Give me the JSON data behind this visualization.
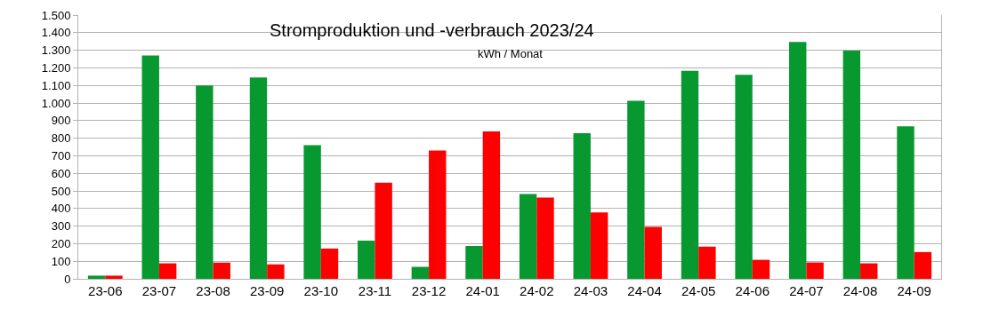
{
  "chart_data": {
    "type": "bar",
    "title": "Stromproduktion und -verbrauch 2023/24",
    "subtitle": "kWh / Monat",
    "categories": [
      "23-06",
      "23-07",
      "23-08",
      "23-09",
      "23-10",
      "23-11",
      "23-12",
      "24-01",
      "24-02",
      "24-03",
      "24-04",
      "24-05",
      "24-06",
      "24-07",
      "24-08",
      "24-09"
    ],
    "series": [
      {
        "color": "#07982f",
        "values": [
          18,
          1270,
          1100,
          1145,
          760,
          217,
          68,
          187,
          482,
          828,
          1012,
          1183,
          1160,
          1347,
          1298,
          868
        ]
      },
      {
        "color": "#ff0000",
        "values": [
          18,
          88,
          92,
          82,
          172,
          547,
          730,
          838,
          462,
          378,
          296,
          183,
          108,
          93,
          88,
          152
        ]
      }
    ],
    "ylim": [
      0,
      1500
    ],
    "yticks": [
      0,
      100,
      200,
      300,
      400,
      500,
      600,
      700,
      800,
      900,
      {
        "value": 1000,
        "label": "1.000"
      },
      {
        "value": 1100,
        "label": "1.100"
      },
      {
        "value": 1200,
        "label": "1.200"
      },
      {
        "value": 1300,
        "label": "1.300"
      },
      {
        "value": 1400,
        "label": "1.400"
      },
      {
        "value": 1500,
        "label": "1.500"
      }
    ],
    "grid": "y"
  }
}
